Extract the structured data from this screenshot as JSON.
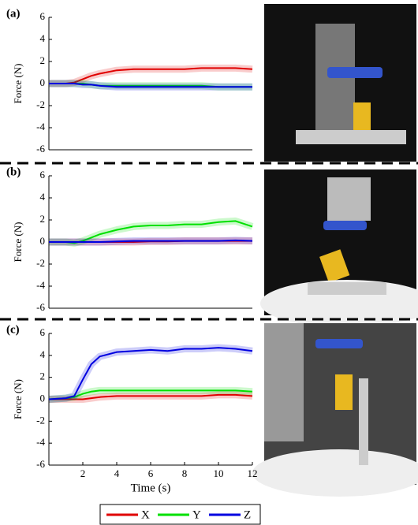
{
  "chart_data": [
    {
      "type": "line",
      "panel": "(a)",
      "ylabel": "Force (N)",
      "ylim": [
        -6,
        6
      ],
      "yticks": [
        -6,
        -4,
        -2,
        0,
        2,
        4,
        6
      ],
      "xlim": [
        0,
        12
      ],
      "x": [
        0,
        1,
        1.5,
        2,
        2.5,
        3,
        4,
        5,
        6,
        7,
        8,
        9,
        10,
        11,
        12
      ],
      "series": [
        {
          "name": "X",
          "color": "#e00000",
          "values": [
            0,
            0,
            0.1,
            0.4,
            0.7,
            0.9,
            1.2,
            1.3,
            1.3,
            1.3,
            1.3,
            1.4,
            1.4,
            1.4,
            1.3
          ]
        },
        {
          "name": "Y",
          "color": "#00e000",
          "values": [
            0,
            0,
            0,
            0,
            -0.1,
            -0.2,
            -0.2,
            -0.2,
            -0.2,
            -0.2,
            -0.2,
            -0.2,
            -0.3,
            -0.3,
            -0.3
          ]
        },
        {
          "name": "Z",
          "color": "#0000e0",
          "values": [
            0,
            0,
            0,
            -0.1,
            -0.1,
            -0.2,
            -0.3,
            -0.3,
            -0.3,
            -0.3,
            -0.3,
            -0.3,
            -0.3,
            -0.3,
            -0.3
          ]
        }
      ]
    },
    {
      "type": "line",
      "panel": "(b)",
      "ylabel": "Force (N)",
      "ylim": [
        -6,
        6
      ],
      "yticks": [
        -6,
        -4,
        -2,
        0,
        2,
        4,
        6
      ],
      "xlim": [
        0,
        12
      ],
      "x": [
        0,
        1,
        1.5,
        2,
        2.5,
        3,
        4,
        5,
        6,
        7,
        8,
        9,
        10,
        11,
        12
      ],
      "series": [
        {
          "name": "X",
          "color": "#e00000",
          "values": [
            0,
            0,
            0,
            0,
            0,
            0,
            0,
            0,
            0.05,
            0.05,
            0.1,
            0.1,
            0.1,
            0.1,
            0.1
          ]
        },
        {
          "name": "Y",
          "color": "#00e000",
          "values": [
            0,
            0,
            -0.1,
            0.1,
            0.4,
            0.7,
            1.1,
            1.4,
            1.5,
            1.5,
            1.6,
            1.6,
            1.8,
            1.9,
            1.4
          ]
        },
        {
          "name": "Z",
          "color": "#0000e0",
          "values": [
            0,
            0,
            0,
            0,
            0,
            0,
            0.05,
            0.1,
            0.1,
            0.1,
            0.1,
            0.1,
            0.1,
            0.15,
            0.1
          ]
        }
      ]
    },
    {
      "type": "line",
      "panel": "(c)",
      "ylabel": "Force (N)",
      "xlabel": "Time (s)",
      "ylim": [
        -6,
        6
      ],
      "yticks": [
        -6,
        -4,
        -2,
        0,
        2,
        4,
        6
      ],
      "xlim": [
        0,
        12
      ],
      "xticks": [
        2,
        4,
        6,
        8,
        10,
        12
      ],
      "x": [
        0,
        1,
        1.5,
        2,
        2.5,
        3,
        4,
        5,
        6,
        7,
        8,
        9,
        10,
        11,
        12
      ],
      "series": [
        {
          "name": "X",
          "color": "#e00000",
          "values": [
            0,
            0,
            0,
            0,
            0.1,
            0.2,
            0.3,
            0.3,
            0.3,
            0.3,
            0.3,
            0.3,
            0.4,
            0.4,
            0.3
          ]
        },
        {
          "name": "Y",
          "color": "#00e000",
          "values": [
            0,
            0.1,
            0.2,
            0.5,
            0.7,
            0.8,
            0.8,
            0.8,
            0.8,
            0.8,
            0.8,
            0.8,
            0.8,
            0.8,
            0.7
          ]
        },
        {
          "name": "Z",
          "color": "#0000e0",
          "values": [
            0,
            0.1,
            0.3,
            1.8,
            3.2,
            3.9,
            4.3,
            4.4,
            4.5,
            4.4,
            4.6,
            4.6,
            4.7,
            4.6,
            4.4
          ]
        }
      ]
    }
  ]
}
